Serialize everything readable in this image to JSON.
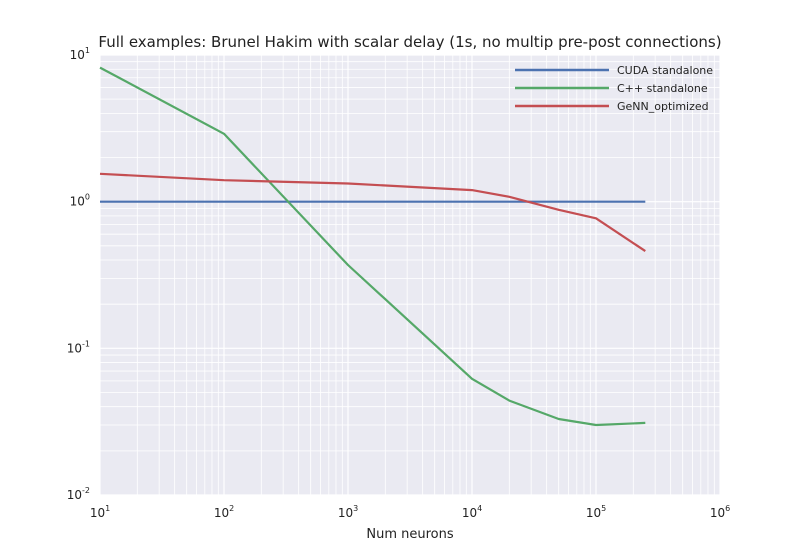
{
  "chart_data": {
    "type": "line",
    "title": "Full examples: Brunel Hakim with scalar delay (1s, no multip pre-post connections)",
    "xlabel": "Num neurons",
    "ylabel": "",
    "xscale": "log",
    "yscale": "log",
    "xlim": [
      10,
      1000000
    ],
    "ylim": [
      0.01,
      10
    ],
    "grid": true,
    "background": "#eaeaf2",
    "legend_position": "top-right",
    "x_ticks": [
      {
        "base": "10",
        "exp": "1"
      },
      {
        "base": "10",
        "exp": "2"
      },
      {
        "base": "10",
        "exp": "3"
      },
      {
        "base": "10",
        "exp": "4"
      },
      {
        "base": "10",
        "exp": "5"
      },
      {
        "base": "10",
        "exp": "6"
      }
    ],
    "y_ticks": [
      {
        "base": "10",
        "exp": "1"
      },
      {
        "base": "10",
        "exp": "0"
      },
      {
        "base": "10",
        "exp": "-1"
      },
      {
        "base": "10",
        "exp": "-2"
      }
    ],
    "series": [
      {
        "name": "CUDA standalone",
        "color": "#4c72b0",
        "x": [
          10,
          250000
        ],
        "y": [
          1.0,
          1.0
        ]
      },
      {
        "name": "C++ standalone",
        "color": "#55a868",
        "x": [
          10,
          100,
          1000,
          10000,
          20000,
          50000,
          100000,
          250000
        ],
        "y": [
          8.2,
          2.9,
          0.37,
          0.062,
          0.044,
          0.033,
          0.03,
          0.031
        ]
      },
      {
        "name": "GeNN_optimized",
        "color": "#c44e52",
        "x": [
          10,
          100,
          1000,
          10000,
          20000,
          50000,
          100000,
          250000
        ],
        "y": [
          1.55,
          1.4,
          1.33,
          1.2,
          1.08,
          0.88,
          0.77,
          0.46
        ]
      }
    ]
  }
}
